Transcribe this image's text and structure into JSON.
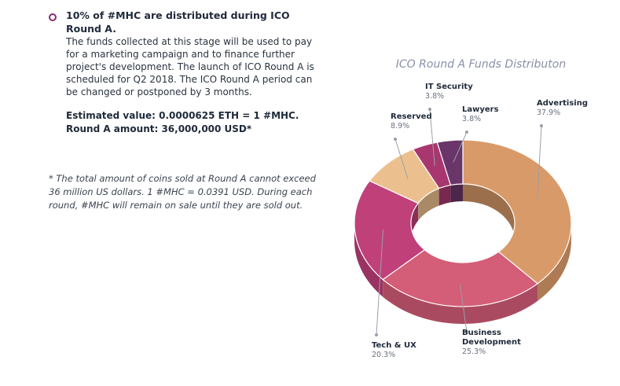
{
  "intro": {
    "heading": "10% of #MHC are distributed during ICO Round A.",
    "body": "The funds collected at this stage will be used to pay for a marketing campaign and to finance further project's development. The launch of ICO Round A is scheduled for Q2 2018. The ICO Round A period can be changed or postponed by 3 months.",
    "estimated_value": "Estimated value: 0.0000625 ETH = 1 #MHC.",
    "round_amount": "Round A amount: 36,000,000 USD*"
  },
  "footnote": "* The total amount of coins sold at Round A cannot exceed 36 million US dollars. 1 #MHC = 0.0391 USD.  During each round, #MHC will remain on sale until they are sold out.",
  "chart_data": {
    "type": "pie",
    "style": "3d-donut",
    "title": "ICO Round A Funds Distributon",
    "slices": [
      {
        "name": "Advertising",
        "value_label": "37.9%",
        "value": 37.9,
        "color": "#d99a6a"
      },
      {
        "name": "Business Development",
        "value_label": "25.3%",
        "value": 25.3,
        "color": "#d45d78"
      },
      {
        "name": "Tech & UX",
        "value_label": "20.3%",
        "value": 20.3,
        "color": "#c0407a"
      },
      {
        "name": "Reserved",
        "value_label": "8.9%",
        "value": 8.9,
        "color": "#ecc08e"
      },
      {
        "name": "IT Security",
        "value_label": "3.8%",
        "value": 3.8,
        "color": "#a8376f"
      },
      {
        "name": "Lawyers",
        "value_label": "3.8%",
        "value": 3.8,
        "color": "#6a3568"
      }
    ]
  }
}
